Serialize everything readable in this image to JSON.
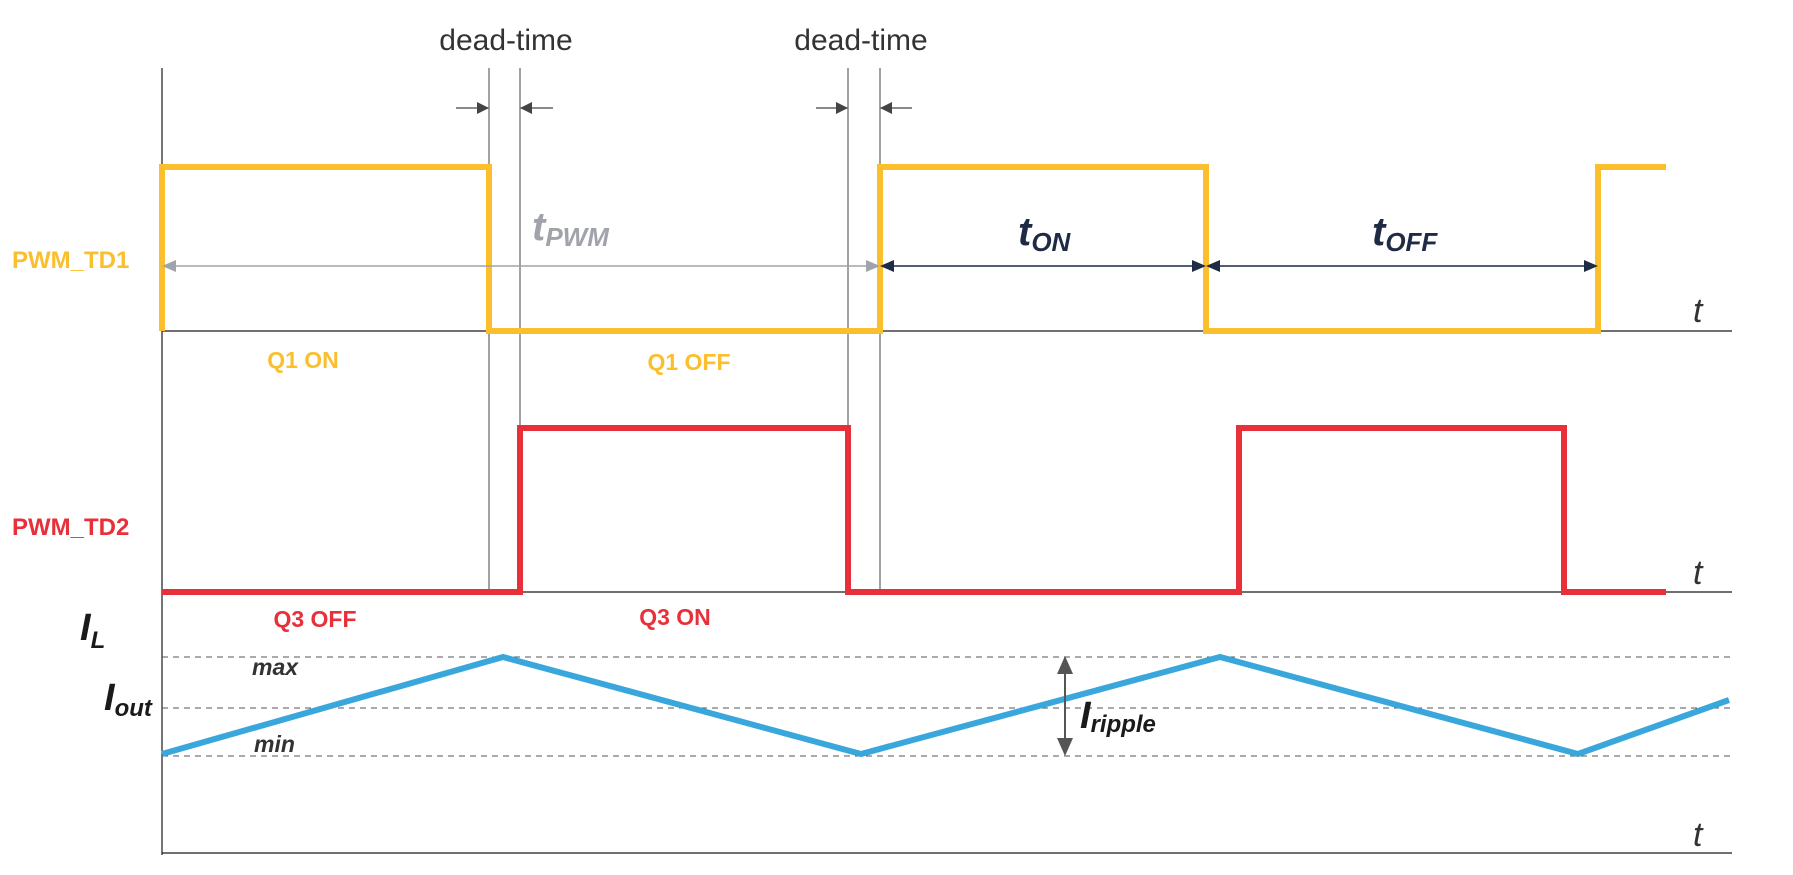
{
  "labels": {
    "dead_time_1": "dead-time",
    "dead_time_2": "dead-time",
    "pwm_td1": "PWM_TD1",
    "pwm_td2": "PWM_TD2",
    "q1_on": "Q1 ON",
    "q1_off": "Q1 OFF",
    "q3_off": "Q3 OFF",
    "q3_on": "Q3 ON",
    "t_pwm": "t",
    "t_pwm_sub": "PWM",
    "t_on": "t",
    "t_on_sub": "ON",
    "t_off": "t",
    "t_off_sub": "OFF",
    "axis_t1": "t",
    "axis_t2": "t",
    "axis_t3": "t",
    "il": "I",
    "il_sub": "L",
    "iout": "I",
    "iout_sub": "out",
    "max": "max",
    "min": "min",
    "iripple": "I",
    "iripple_sub": "ripple"
  },
  "colors": {
    "pwm_td1": "#fbbf2e",
    "pwm_td2": "#e8303a",
    "inductor_current": "#3aa7dc",
    "arrow_dark": "#1f2a44",
    "t_pwm_gray": "#a0a4aa",
    "dead_time_arrow": "#444444"
  }
}
